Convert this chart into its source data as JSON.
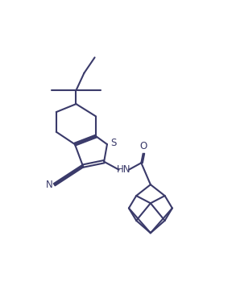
{
  "background_color": "#ffffff",
  "line_color": "#3a3a6a",
  "line_width": 1.5,
  "fig_width": 2.88,
  "fig_height": 3.7,
  "dpi": 100,
  "S_label": "S",
  "HN_label": "HN",
  "O_label": "O",
  "N_label": "N"
}
